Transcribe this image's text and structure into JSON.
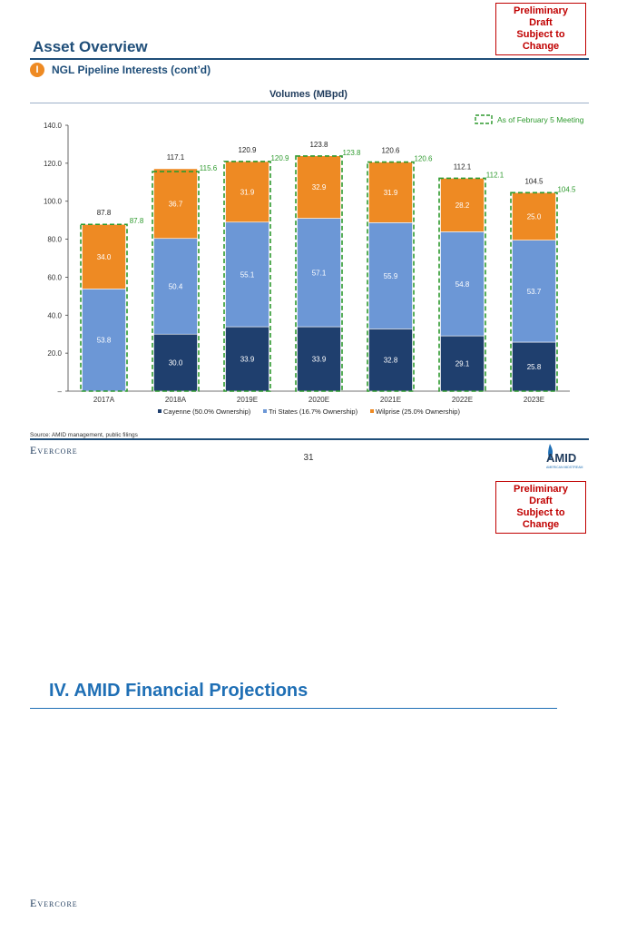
{
  "draft_notice": {
    "line1": "Preliminary Draft",
    "line2": "Subject to Change"
  },
  "page_title": "Asset Overview",
  "section": {
    "number": "I",
    "title": "NGL Pipeline Interests (cont’d)"
  },
  "chart_data": {
    "type": "bar",
    "stacked": true,
    "title": "Volumes (MBpd)",
    "categories": [
      "2017A",
      "2018A",
      "2019E",
      "2020E",
      "2021E",
      "2022E",
      "2023E"
    ],
    "series": [
      {
        "name": "Cayenne (50.0% Ownership)",
        "color": "#1f3f6e",
        "values": [
          null,
          30.0,
          33.9,
          33.9,
          32.8,
          29.1,
          25.8
        ]
      },
      {
        "name": "Tri States (16.7% Ownership)",
        "color": "#6c97d6",
        "values": [
          53.8,
          50.4,
          55.1,
          57.1,
          55.9,
          54.8,
          53.7
        ]
      },
      {
        "name": "Wilprise (25.0% Ownership)",
        "color": "#ee8a23",
        "values": [
          34.0,
          36.7,
          31.9,
          32.9,
          31.9,
          28.2,
          25.0
        ]
      }
    ],
    "segment_labels": [
      [
        "",
        "30.0",
        "33.9",
        "33.9",
        "32.8",
        "29.1",
        "25.8"
      ],
      [
        "53.8",
        "50.4",
        "55.1",
        "57.1",
        "55.9",
        "54.8",
        "53.7"
      ],
      [
        "34.0",
        "36.7",
        "31.9",
        "32.9",
        "31.9",
        "28.2",
        "25.0"
      ]
    ],
    "totals": [
      87.8,
      117.1,
      120.9,
      123.8,
      120.6,
      112.1,
      104.5
    ],
    "total_labels": [
      "87.8",
      "117.1",
      "120.9",
      "123.8",
      "120.6",
      "112.1",
      "104.5"
    ],
    "comparison": {
      "name": "As of February 5 Meeting",
      "color": "#2e9a2e",
      "values": [
        87.8,
        115.6,
        120.9,
        123.8,
        120.6,
        112.1,
        104.5
      ],
      "labels": [
        "87.8",
        "115.6",
        "120.9",
        "123.8",
        "120.6",
        "112.1",
        "104.5"
      ]
    },
    "yticks": [
      0,
      20,
      40,
      60,
      80,
      100,
      120,
      140
    ],
    "ytick_labels": [
      "–",
      "20.0",
      "40.0",
      "60.0",
      "80.0",
      "100.0",
      "120.0",
      "140.0"
    ],
    "ylim": [
      0,
      140
    ],
    "xlabel": "",
    "ylabel": "",
    "legend_position": "bottom"
  },
  "source": "Source: AMID management, public filings",
  "footer": {
    "brand": "Evercore",
    "page_number": "31",
    "logo_text": "AMID",
    "logo_subtext": "AMERICAN MIDSTREAM"
  },
  "next_section_heading": "IV.  AMID Financial Projections",
  "colors": {
    "navy": "#1f4e79",
    "accent_orange": "#ee8a23",
    "draft_red": "#c00000",
    "heading_blue": "#1f6fb5"
  }
}
